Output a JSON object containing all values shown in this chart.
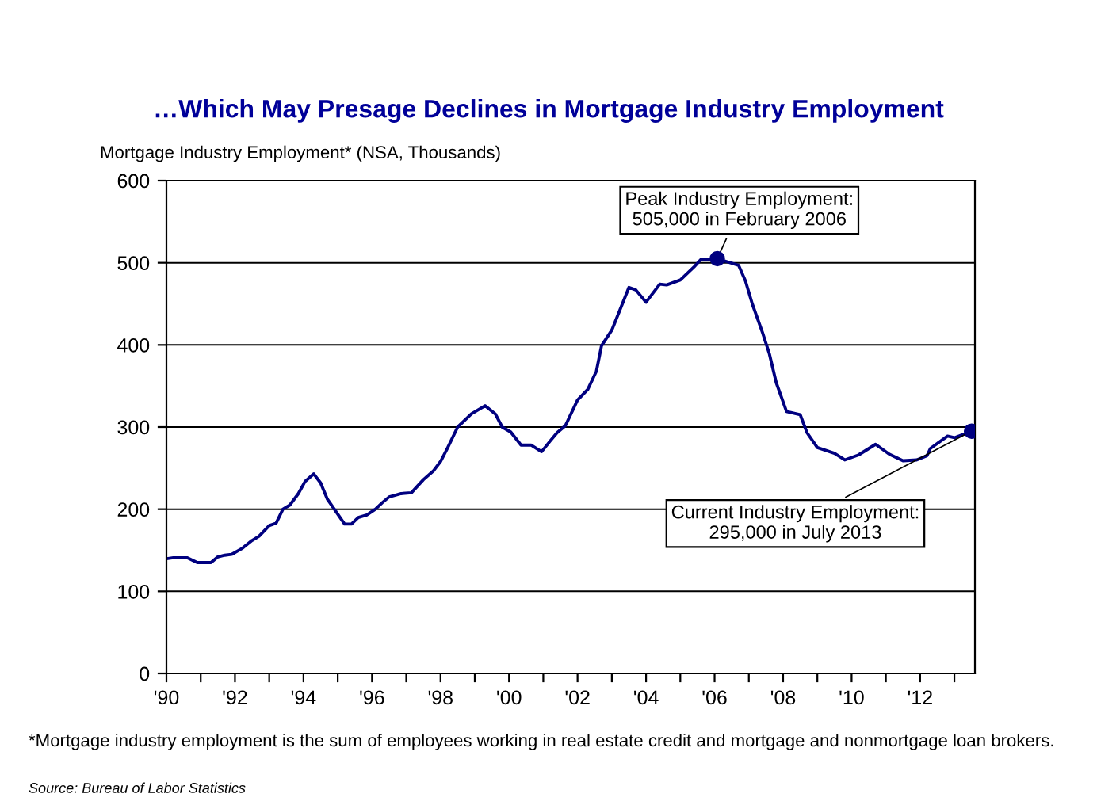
{
  "chart_data": {
    "type": "line",
    "title": "…Which May Presage Declines in Mortgage Industry Employment",
    "ylabel": "Mortgage Industry Employment* (NSA, Thousands)",
    "x": [
      1990.05,
      1990.2,
      1990.6,
      1990.9,
      1991.3,
      1991.5,
      1991.7,
      1991.9,
      1992.2,
      1992.5,
      1992.7,
      1993.0,
      1993.2,
      1993.4,
      1993.6,
      1993.85,
      1994.05,
      1994.3,
      1994.5,
      1994.7,
      1995.0,
      1995.2,
      1995.4,
      1995.6,
      1995.85,
      1996.1,
      1996.3,
      1996.5,
      1996.85,
      1997.15,
      1997.5,
      1997.8,
      1998.0,
      1998.2,
      1998.5,
      1998.9,
      1999.3,
      1999.6,
      1999.8,
      2000.05,
      2000.35,
      2000.65,
      2000.95,
      2001.2,
      2001.4,
      2001.65,
      2002.0,
      2002.3,
      2002.55,
      2002.7,
      2003.0,
      2003.5,
      2003.7,
      2004.0,
      2004.4,
      2004.6,
      2005.0,
      2005.4,
      2005.6,
      2006.08,
      2006.7,
      2006.9,
      2007.1,
      2007.4,
      2007.6,
      2007.8,
      2008.1,
      2008.5,
      2008.7,
      2009.0,
      2009.5,
      2009.8,
      2010.2,
      2010.7,
      2011.1,
      2011.5,
      2011.9,
      2012.2,
      2012.3,
      2012.8,
      2013.0,
      2013.5
    ],
    "series": [
      {
        "color": "#000080",
        "values": [
          140,
          141,
          141,
          135,
          135,
          142,
          144,
          145,
          152,
          162,
          167,
          180,
          183,
          200,
          205,
          219,
          234,
          243,
          232,
          212,
          194,
          182,
          182,
          190,
          193,
          200,
          208,
          215,
          219,
          220,
          236,
          247,
          258,
          274,
          300,
          316,
          326,
          316,
          300,
          294,
          278,
          278,
          270,
          283,
          293,
          302,
          333,
          346,
          368,
          399,
          418,
          470,
          467,
          452,
          474,
          473,
          479,
          495,
          504,
          505,
          497,
          478,
          450,
          415,
          389,
          354,
          319,
          315,
          293,
          275,
          268,
          260,
          266,
          279,
          267,
          259,
          260,
          265,
          274,
          289,
          287,
          295
        ]
      }
    ],
    "xlim": [
      1990,
      2013.6
    ],
    "ylim": [
      0,
      600
    ],
    "yticks": [
      0,
      100,
      200,
      300,
      400,
      500,
      600
    ],
    "xticks": [
      {
        "value": 1990,
        "label": "'90"
      },
      {
        "value": 1991,
        "label": null
      },
      {
        "value": 1992,
        "label": "'92"
      },
      {
        "value": 1993,
        "label": null
      },
      {
        "value": 1994,
        "label": "'94"
      },
      {
        "value": 1995,
        "label": null
      },
      {
        "value": 1996,
        "label": "'96"
      },
      {
        "value": 1997,
        "label": null
      },
      {
        "value": 1998,
        "label": "'98"
      },
      {
        "value": 1999,
        "label": null
      },
      {
        "value": 2000,
        "label": "'00"
      },
      {
        "value": 2001,
        "label": null
      },
      {
        "value": 2002,
        "label": "'02"
      },
      {
        "value": 2003,
        "label": null
      },
      {
        "value": 2004,
        "label": "'04"
      },
      {
        "value": 2005,
        "label": null
      },
      {
        "value": 2006,
        "label": "'06"
      },
      {
        "value": 2007,
        "label": null
      },
      {
        "value": 2008,
        "label": "'08"
      },
      {
        "value": 2009,
        "label": null
      },
      {
        "value": 2010,
        "label": "'10"
      },
      {
        "value": 2011,
        "label": null
      },
      {
        "value": 2012,
        "label": "'12"
      },
      {
        "value": 2013,
        "label": null
      }
    ],
    "grid": "y",
    "legend": false,
    "marker": "none",
    "line_style": "solid",
    "annotations": [
      {
        "text": "Peak Industry Employment:\n505,000 in February 2006",
        "x": 2006.08,
        "y": 505
      },
      {
        "text": "Current Industry Employment:\n295,000 in July 2013",
        "x": 2013.5,
        "y": 295
      },
      "*Mortgage industry employment is the sum of employees working in real estate credit and mortgage and nonmortgage loan brokers.",
      "Source: Bureau of Labor Statistics"
    ]
  }
}
